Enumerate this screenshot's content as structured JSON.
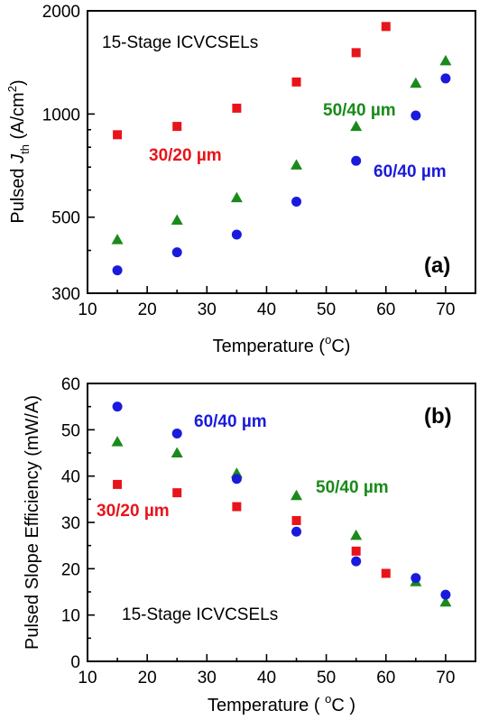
{
  "chart_data": [
    {
      "type": "scatter",
      "panel_label": "(a)",
      "annotation": "15-Stage ICVCSELs",
      "ylabel_prefix": "Pulsed ",
      "ylabel_symbol": "J",
      "ylabel_sub": "th",
      "ylabel_unit_open": " (A/cm",
      "ylabel_unit_sup": "2",
      "ylabel_unit_close": ")",
      "xlabel_main": "Temperature (",
      "xlabel_sup": "o",
      "xlabel_end": "C)",
      "xlim": [
        10,
        75
      ],
      "ylim": [
        300,
        2000
      ],
      "yscale": "log",
      "xticks": [
        10,
        20,
        30,
        40,
        50,
        60,
        70
      ],
      "yticks": [
        300,
        500,
        1000,
        2000
      ],
      "series": [
        {
          "name": "30/20 µm",
          "marker": "square",
          "color": "#e8141b",
          "x": [
            15,
            25,
            35,
            45,
            55,
            60
          ],
          "y": [
            870,
            920,
            1040,
            1240,
            1510,
            1800
          ]
        },
        {
          "name": "50/40 µm",
          "marker": "triangle",
          "color": "#1a8a1a",
          "x": [
            15,
            25,
            35,
            45,
            55,
            65,
            70
          ],
          "y": [
            430,
            490,
            570,
            710,
            920,
            1230,
            1430
          ]
        },
        {
          "name": "60/40 µm",
          "marker": "circle",
          "color": "#1a1adc",
          "x": [
            15,
            25,
            35,
            45,
            55,
            65,
            70
          ],
          "y": [
            350,
            395,
            445,
            555,
            730,
            990,
            1270
          ]
        }
      ]
    },
    {
      "type": "scatter",
      "panel_label": "(b)",
      "annotation": "15-Stage ICVCSELs",
      "ylabel": "Pulsed Slope Efficiency (mW/A)",
      "xlabel_main": "Temperature ( ",
      "xlabel_sup": "o",
      "xlabel_end": "C )",
      "xlim": [
        10,
        75
      ],
      "ylim": [
        0,
        60
      ],
      "xticks": [
        10,
        20,
        30,
        40,
        50,
        60,
        70
      ],
      "yticks": [
        0,
        10,
        20,
        30,
        40,
        50,
        60
      ],
      "series": [
        {
          "name": "30/20 µm",
          "marker": "square",
          "color": "#e8141b",
          "x": [
            15,
            25,
            35,
            45,
            55,
            60
          ],
          "y": [
            38.2,
            36.4,
            33.4,
            30.4,
            23.8,
            19.0
          ]
        },
        {
          "name": "50/40 µm",
          "marker": "triangle",
          "color": "#1a8a1a",
          "x": [
            15,
            25,
            35,
            45,
            55,
            65,
            70
          ],
          "y": [
            47.4,
            45.0,
            40.6,
            35.8,
            27.2,
            17.2,
            12.8
          ]
        },
        {
          "name": "60/40 µm",
          "marker": "circle",
          "color": "#1a1adc",
          "x": [
            15,
            25,
            35,
            45,
            55,
            65,
            70
          ],
          "y": [
            55.0,
            49.2,
            39.4,
            28.0,
            21.6,
            18.0,
            14.4
          ]
        }
      ]
    }
  ]
}
